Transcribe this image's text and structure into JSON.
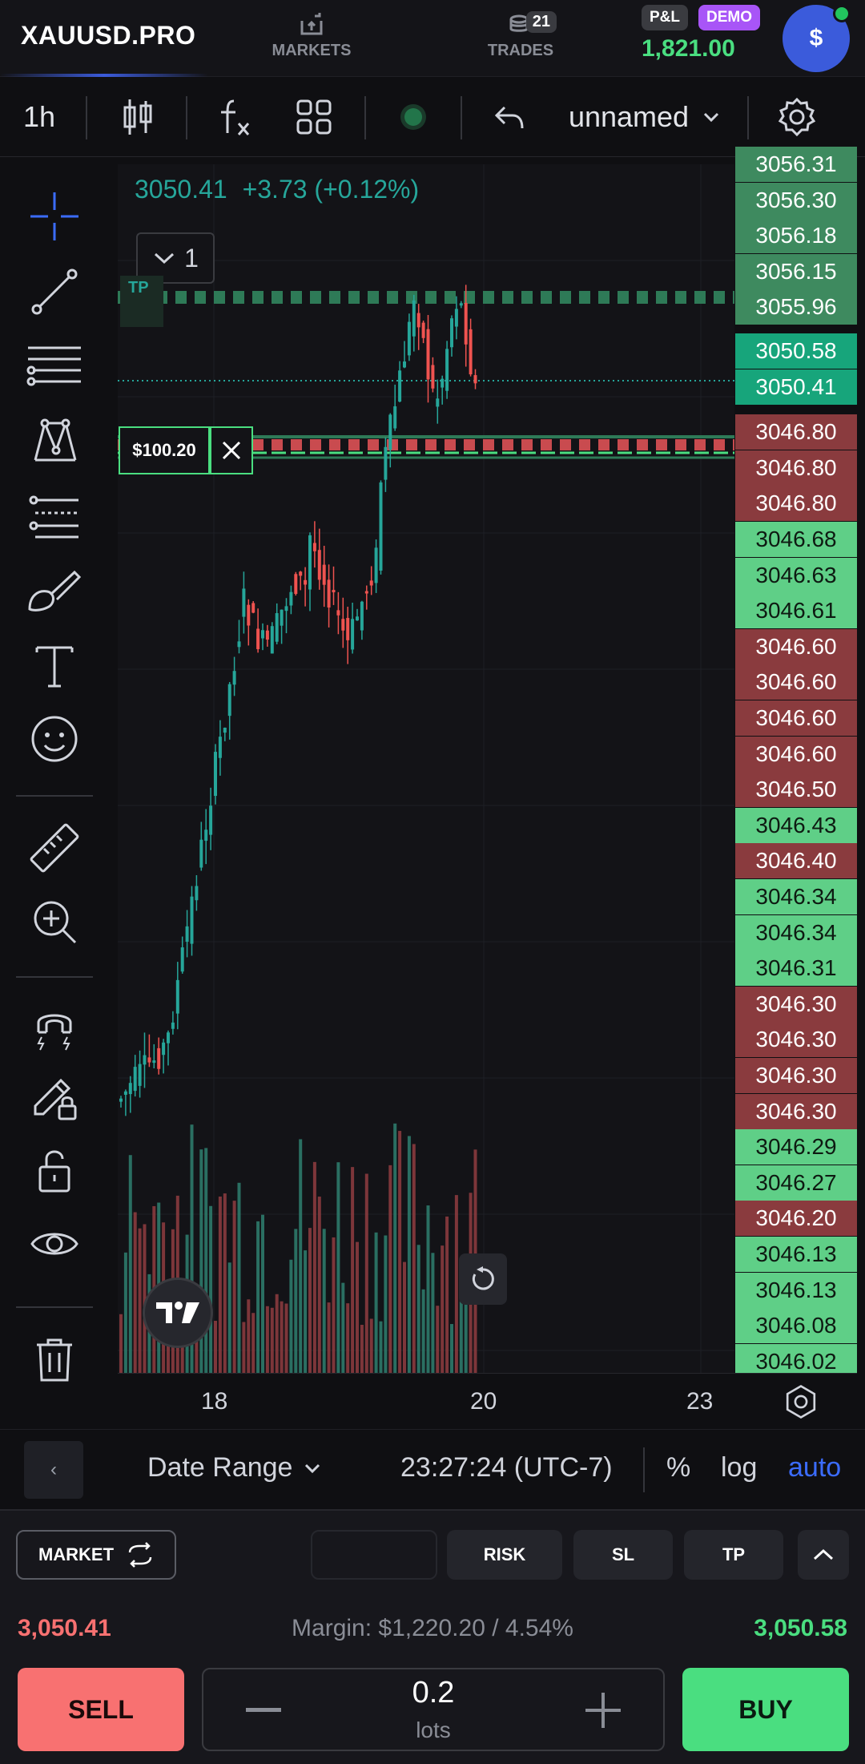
{
  "header": {
    "symbol": "XAUUSD.PRO",
    "nav": [
      {
        "label": "MARKETS",
        "icon": "markets-icon"
      },
      {
        "label": "TRADES",
        "icon": "trades-icon",
        "badge": "21"
      }
    ],
    "pl_label": "P&L",
    "mode_label": "DEMO",
    "balance": "1,821.00",
    "avatar_symbol": "$"
  },
  "toolbar": {
    "timeframe": "1h",
    "layout_name": "unnamed",
    "icons": [
      "candles-icon",
      "indicators-icon",
      "layouts-icon",
      "status-dot-icon",
      "undo-icon",
      "chevron-down-icon",
      "settings-icon"
    ]
  },
  "left_tools": [
    "crosshair-icon",
    "trendline-icon",
    "horizontal-lines-icon",
    "pattern-icon",
    "fib-icon",
    "brush-icon",
    "text-icon",
    "emoji-icon",
    "ruler-icon",
    "zoom-in-icon",
    "magnet-icon",
    "lock-drawing-icon",
    "unlock-icon",
    "eye-icon",
    "trash-icon"
  ],
  "chart": {
    "last_price": "3050.41",
    "change": "+3.73 (+0.12%)",
    "collapse_count": "1",
    "tp_label": "TP",
    "order_label": "$100.20",
    "colors": {
      "up": "#26a69a",
      "down": "#ef5350",
      "background": "#131317"
    }
  },
  "price_ladder": [
    {
      "price": "3056.31",
      "side": "green"
    },
    {
      "price": "3056.30",
      "side": "green"
    },
    {
      "price": "3056.18",
      "side": "green"
    },
    {
      "price": "3056.15",
      "side": "green"
    },
    {
      "price": "3055.96",
      "side": "green"
    },
    {
      "price": "3050.58",
      "side": "teal"
    },
    {
      "price": "3050.41",
      "side": "teal"
    },
    {
      "price": "3046.80",
      "side": "red"
    },
    {
      "price": "3046.80",
      "side": "red"
    },
    {
      "price": "3046.80",
      "side": "red"
    },
    {
      "price": "3046.68",
      "side": "lime"
    },
    {
      "price": "3046.63",
      "side": "lime"
    },
    {
      "price": "3046.61",
      "side": "lime"
    },
    {
      "price": "3046.60",
      "side": "red"
    },
    {
      "price": "3046.60",
      "side": "red"
    },
    {
      "price": "3046.60",
      "side": "red"
    },
    {
      "price": "3046.60",
      "side": "red"
    },
    {
      "price": "3046.50",
      "side": "red"
    },
    {
      "price": "3046.43",
      "side": "lime"
    },
    {
      "price": "3046.40",
      "side": "red"
    },
    {
      "price": "3046.34",
      "side": "lime"
    },
    {
      "price": "3046.34",
      "side": "lime"
    },
    {
      "price": "3046.31",
      "side": "lime"
    },
    {
      "price": "3046.30",
      "side": "red"
    },
    {
      "price": "3046.30",
      "side": "red"
    },
    {
      "price": "3046.30",
      "side": "red"
    },
    {
      "price": "3046.30",
      "side": "red"
    },
    {
      "price": "3046.29",
      "side": "lime"
    },
    {
      "price": "3046.27",
      "side": "lime"
    },
    {
      "price": "3046.20",
      "side": "red"
    },
    {
      "price": "3046.13",
      "side": "lime"
    },
    {
      "price": "3046.13",
      "side": "lime"
    },
    {
      "price": "3046.08",
      "side": "lime"
    },
    {
      "price": "3046.02",
      "side": "lime"
    }
  ],
  "time_axis": {
    "labels": [
      "18",
      "20",
      "23"
    ]
  },
  "range_bar": {
    "back_label": "‹",
    "date_range": "Date Range",
    "time": "23:27:24 (UTC-7)",
    "percent": "%",
    "log": "log",
    "auto": "auto"
  },
  "order_panel": {
    "market_label": "MARKET",
    "risk_label": "RISK",
    "sl_label": "SL",
    "tp_label": "TP",
    "sell_price": "3,050.41",
    "buy_price": "3,050.58",
    "margin": "Margin: $1,220.20 / 4.54%",
    "sell_label": "SELL",
    "buy_label": "BUY",
    "lots_value": "0.2",
    "lots_unit": "lots"
  }
}
